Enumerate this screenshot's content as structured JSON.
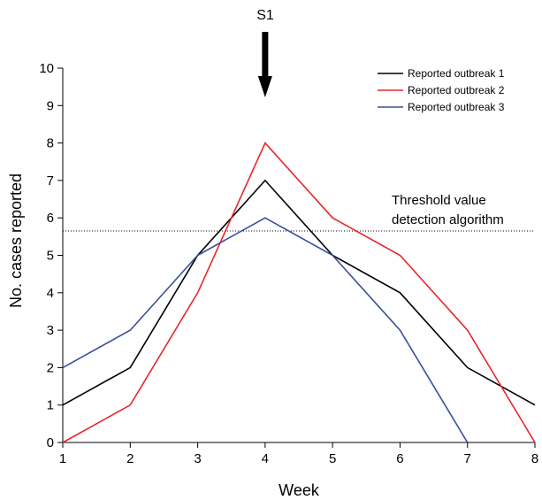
{
  "chart_data": {
    "type": "line",
    "title": "",
    "xlabel": "Week",
    "ylabel": "No. cases reported",
    "xlim": [
      1,
      8
    ],
    "ylim": [
      0,
      10
    ],
    "x": [
      1,
      2,
      3,
      4,
      5,
      6,
      7,
      8
    ],
    "x_ticks": [
      "1",
      "2",
      "3",
      "4",
      "5",
      "6",
      "7",
      "8"
    ],
    "y_ticks": [
      "0",
      "1",
      "2",
      "3",
      "4",
      "5",
      "6",
      "7",
      "8",
      "9",
      "10"
    ],
    "grid": false,
    "legend": "top-right",
    "series": [
      {
        "name": "Reported outbreak 1",
        "color": "#000000",
        "x": [
          1,
          2,
          3,
          4,
          5,
          6,
          7,
          8
        ],
        "values": [
          1,
          2,
          5,
          7,
          5,
          4,
          2,
          1
        ]
      },
      {
        "name": "Reported outbreak 2",
        "color": "#e8262b",
        "x": [
          1,
          2,
          3,
          4,
          5,
          6,
          7,
          8
        ],
        "values": [
          0,
          1,
          4,
          8,
          6,
          5,
          3,
          0
        ]
      },
      {
        "name": "Reported outbreak 3",
        "color": "#3a4f9a",
        "x": [
          1,
          2,
          3,
          4,
          5,
          6,
          7
        ],
        "values": [
          2,
          3,
          5,
          6,
          5,
          3,
          0
        ]
      }
    ],
    "threshold": {
      "value": 5.65,
      "label_line1": "Threshold value",
      "label_line2": "detection algorithm"
    },
    "marker": {
      "label": "S1",
      "x": 4
    }
  }
}
